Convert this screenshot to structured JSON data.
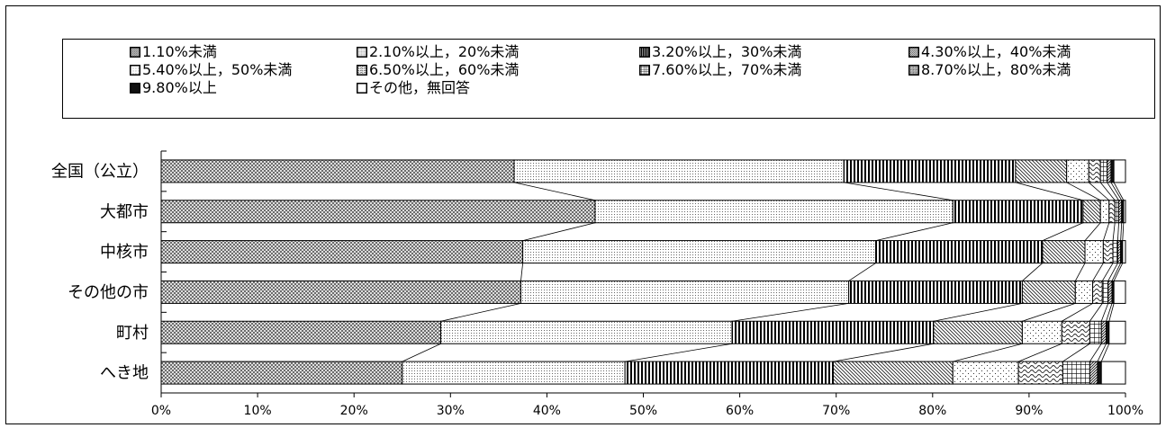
{
  "chart_data": {
    "type": "bar",
    "orientation": "horizontal",
    "stacked": true,
    "percent": true,
    "title": "",
    "xlabel": "",
    "ylabel": "",
    "xlim": [
      0,
      100
    ],
    "x_ticks": [
      "0%",
      "10%",
      "20%",
      "30%",
      "40%",
      "50%",
      "60%",
      "70%",
      "80%",
      "90%",
      "100%"
    ],
    "categories": [
      "全国（公立）",
      "大都市",
      "中核市",
      "その他の市",
      "町村",
      "へき地"
    ],
    "legend_position": "top",
    "series_lines": true,
    "series": [
      {
        "name": "1.10%未満",
        "pattern": "crosshatch",
        "values": [
          36.6,
          45.0,
          37.5,
          37.3,
          29.0,
          25.0
        ]
      },
      {
        "name": "2.10%以上，20%未満",
        "pattern": "fine-dots",
        "values": [
          34.2,
          37.1,
          36.6,
          34.0,
          30.2,
          23.1
        ]
      },
      {
        "name": "3.20%以上，30%未満",
        "pattern": "vertical-lines",
        "values": [
          17.8,
          13.5,
          17.3,
          18.0,
          20.9,
          21.6
        ]
      },
      {
        "name": "4.30%以上，40%未満",
        "pattern": "diagonal-lines",
        "values": [
          5.3,
          1.8,
          4.4,
          5.5,
          9.2,
          12.4
        ]
      },
      {
        "name": "5.40%以上，50%未満",
        "pattern": "sparse-dots",
        "values": [
          2.3,
          0.9,
          1.9,
          1.8,
          4.1,
          6.8
        ]
      },
      {
        "name": "6.50%以上，60%未満",
        "pattern": "waves",
        "values": [
          1.2,
          0.6,
          1.0,
          1.0,
          2.9,
          4.6
        ]
      },
      {
        "name": "7.60%以上，70%未満",
        "pattern": "grid",
        "values": [
          0.7,
          0.4,
          0.5,
          0.6,
          1.2,
          2.8
        ]
      },
      {
        "name": "8.70%以上，80%未満",
        "pattern": "dense-diagonal",
        "values": [
          0.4,
          0.3,
          0.3,
          0.4,
          0.5,
          0.8
        ]
      },
      {
        "name": "9.80%以上",
        "pattern": "solid-block",
        "values": [
          0.3,
          0.2,
          0.2,
          0.2,
          0.3,
          0.4
        ]
      },
      {
        "name": "その他，無回答",
        "pattern": "blank",
        "values": [
          1.2,
          0.2,
          0.3,
          1.2,
          1.7,
          2.5
        ]
      }
    ]
  }
}
